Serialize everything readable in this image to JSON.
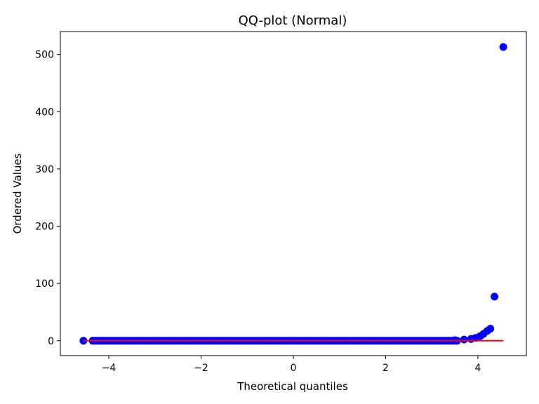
{
  "chart_data": {
    "type": "scatter",
    "title": "QQ-plot (Normal)",
    "xlabel": "Theoretical quantiles",
    "ylabel": "Ordered Values",
    "xlim": [
      -5.05,
      5.05
    ],
    "ylim": [
      -26,
      540
    ],
    "xticks": [
      -4,
      -2,
      0,
      2,
      4
    ],
    "xtick_labels": [
      "−4",
      "−2",
      "0",
      "2",
      "4"
    ],
    "yticks": [
      0,
      100,
      200,
      300,
      400,
      500
    ],
    "ytick_labels": [
      "0",
      "100",
      "200",
      "300",
      "400",
      "500"
    ],
    "grid": false,
    "point_color": "#0000ff",
    "line_color": "#ff0000",
    "series": [
      {
        "kind": "points",
        "x_range": [
          -4.55,
          4.55
        ],
        "bulk_y": 0,
        "tail_points": [
          {
            "x": -4.55,
            "y": 0
          },
          {
            "x": -4.35,
            "y": 0
          },
          {
            "x": 3.5,
            "y": 1
          },
          {
            "x": 3.7,
            "y": 2
          },
          {
            "x": 3.85,
            "y": 3
          },
          {
            "x": 3.95,
            "y": 5
          },
          {
            "x": 4.05,
            "y": 8
          },
          {
            "x": 4.12,
            "y": 12
          },
          {
            "x": 4.2,
            "y": 17
          },
          {
            "x": 4.27,
            "y": 21
          },
          {
            "x": 4.36,
            "y": 77
          },
          {
            "x": 4.55,
            "y": 513
          }
        ]
      },
      {
        "kind": "fit-line",
        "x": [
          -4.55,
          4.55
        ],
        "y": [
          0,
          0
        ]
      }
    ]
  }
}
